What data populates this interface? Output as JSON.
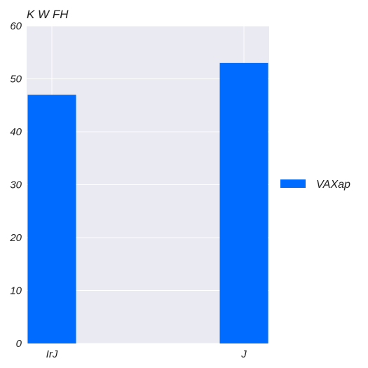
{
  "chart_data": {
    "type": "bar",
    "title": "K W FH",
    "xlabel": "",
    "ylabel": "",
    "categories": [
      "IrJ",
      "J"
    ],
    "series": [
      {
        "name": "VAXap",
        "values": [
          47,
          53
        ]
      }
    ],
    "ylim": [
      0,
      60
    ],
    "yticks": [
      0,
      10,
      20,
      30,
      40,
      50,
      60
    ],
    "grid": true,
    "legend_position": "right",
    "colors": {
      "bar": "#006cff",
      "plot_background": "#e9eaf2",
      "grid": "#ffffff"
    }
  }
}
